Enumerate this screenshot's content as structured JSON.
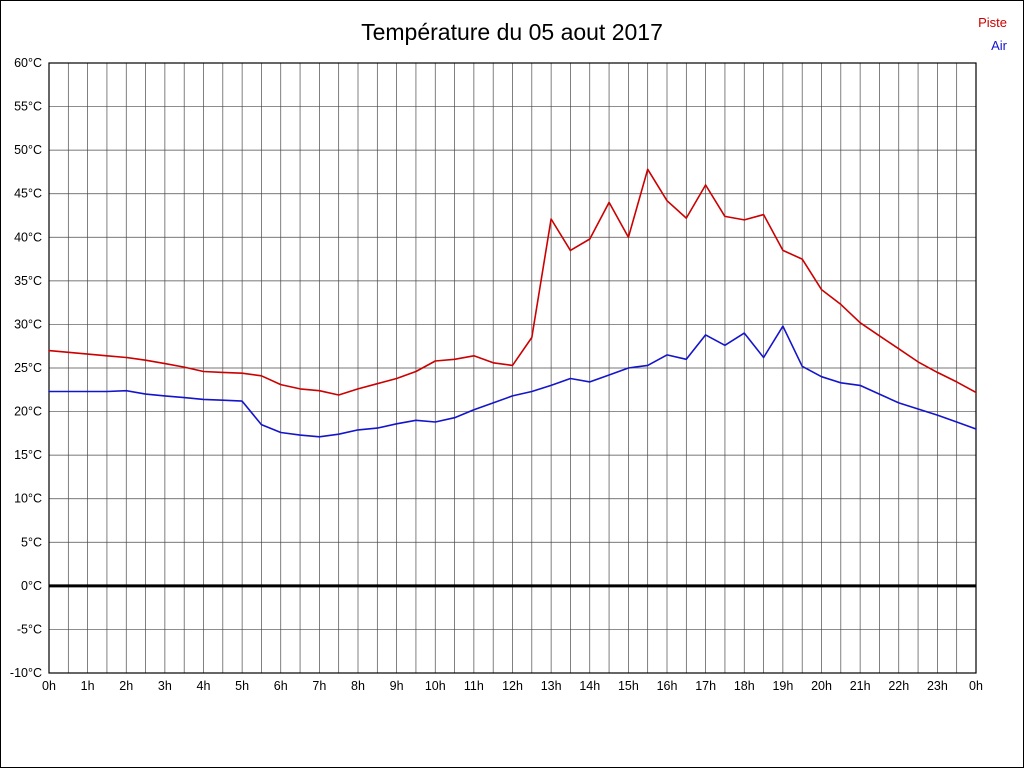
{
  "page": {
    "background": "#ffffff"
  },
  "legend": {
    "items": [
      {
        "label": "Piste",
        "color": "#cc0000"
      },
      {
        "label": "Air",
        "color": "#1414cc"
      }
    ]
  },
  "chart_data": {
    "type": "line",
    "title": "Température du 05 aout 2017",
    "xlabel": "",
    "ylabel": "",
    "x_unit": "hour of day",
    "x_range": [
      0,
      24
    ],
    "y_range": [
      -10,
      60
    ],
    "grid": "on (vertical every 0.5h, horizontal every 5°C)",
    "zero_line_value": 0,
    "x": [
      0,
      0.5,
      1,
      1.5,
      2,
      2.5,
      3,
      3.5,
      4,
      4.5,
      5,
      5.5,
      6,
      6.5,
      7,
      7.5,
      8,
      8.5,
      9,
      9.5,
      10,
      10.5,
      11,
      11.5,
      12,
      12.5,
      13,
      13.5,
      14,
      14.5,
      15,
      15.5,
      16,
      16.5,
      17,
      17.5,
      18,
      18.5,
      19,
      19.5,
      20,
      20.5,
      21,
      21.5,
      22,
      22.5,
      23,
      23.5,
      24
    ],
    "series": [
      {
        "name": "Piste",
        "color": "#cc0000",
        "values": [
          27.0,
          26.8,
          26.6,
          26.4,
          26.2,
          25.9,
          25.5,
          25.1,
          24.6,
          24.5,
          24.4,
          24.1,
          23.1,
          22.6,
          22.4,
          21.9,
          22.6,
          23.2,
          23.8,
          24.6,
          25.8,
          26.0,
          26.4,
          25.6,
          25.3,
          28.5,
          42.1,
          38.5,
          39.8,
          44.0,
          40.0,
          47.8,
          44.2,
          42.2,
          46.0,
          42.4,
          42.0,
          42.6,
          38.5,
          37.5,
          34.0,
          32.3,
          30.2,
          28.7,
          27.2,
          25.7,
          24.5,
          23.4,
          22.2
        ]
      },
      {
        "name": "Air",
        "color": "#1414cc",
        "values": [
          22.3,
          22.3,
          22.3,
          22.3,
          22.4,
          22.0,
          21.8,
          21.6,
          21.4,
          21.3,
          21.2,
          18.5,
          17.6,
          17.3,
          17.1,
          17.4,
          17.9,
          18.1,
          18.6,
          19.0,
          18.8,
          19.3,
          20.2,
          21.0,
          21.8,
          22.3,
          23.0,
          23.8,
          23.4,
          24.2,
          25.0,
          25.3,
          26.5,
          26.0,
          28.8,
          27.6,
          29.0,
          26.2,
          29.8,
          25.2,
          24.0,
          23.3,
          23.0,
          22.0,
          21.0,
          20.3,
          19.6,
          18.8,
          18.0
        ]
      }
    ],
    "y_ticks": [
      {
        "value": 60,
        "label": "60°C"
      },
      {
        "value": 55,
        "label": "55°C"
      },
      {
        "value": 50,
        "label": "50°C"
      },
      {
        "value": 45,
        "label": "45°C"
      },
      {
        "value": 40,
        "label": "40°C"
      },
      {
        "value": 35,
        "label": "35°C"
      },
      {
        "value": 30,
        "label": "30°C"
      },
      {
        "value": 25,
        "label": "25°C"
      },
      {
        "value": 20,
        "label": "20°C"
      },
      {
        "value": 15,
        "label": "15°C"
      },
      {
        "value": 10,
        "label": "10°C"
      },
      {
        "value": 5,
        "label": "5°C"
      },
      {
        "value": 0,
        "label": "0°C"
      },
      {
        "value": -5,
        "label": "-5°C"
      },
      {
        "value": -10,
        "label": "-10°C"
      }
    ],
    "x_ticks": [
      {
        "hour": 0,
        "label": "0h"
      },
      {
        "hour": 1,
        "label": "1h"
      },
      {
        "hour": 2,
        "label": "2h"
      },
      {
        "hour": 3,
        "label": "3h"
      },
      {
        "hour": 4,
        "label": "4h"
      },
      {
        "hour": 5,
        "label": "5h"
      },
      {
        "hour": 6,
        "label": "6h"
      },
      {
        "hour": 7,
        "label": "7h"
      },
      {
        "hour": 8,
        "label": "8h"
      },
      {
        "hour": 9,
        "label": "9h"
      },
      {
        "hour": 10,
        "label": "10h"
      },
      {
        "hour": 11,
        "label": "11h"
      },
      {
        "hour": 12,
        "label": "12h"
      },
      {
        "hour": 13,
        "label": "13h"
      },
      {
        "hour": 14,
        "label": "14h"
      },
      {
        "hour": 15,
        "label": "15h"
      },
      {
        "hour": 16,
        "label": "16h"
      },
      {
        "hour": 17,
        "label": "17h"
      },
      {
        "hour": 18,
        "label": "18h"
      },
      {
        "hour": 19,
        "label": "19h"
      },
      {
        "hour": 20,
        "label": "20h"
      },
      {
        "hour": 21,
        "label": "21h"
      },
      {
        "hour": 22,
        "label": "22h"
      },
      {
        "hour": 23,
        "label": "23h"
      },
      {
        "hour": 24,
        "label": "0h"
      }
    ]
  }
}
